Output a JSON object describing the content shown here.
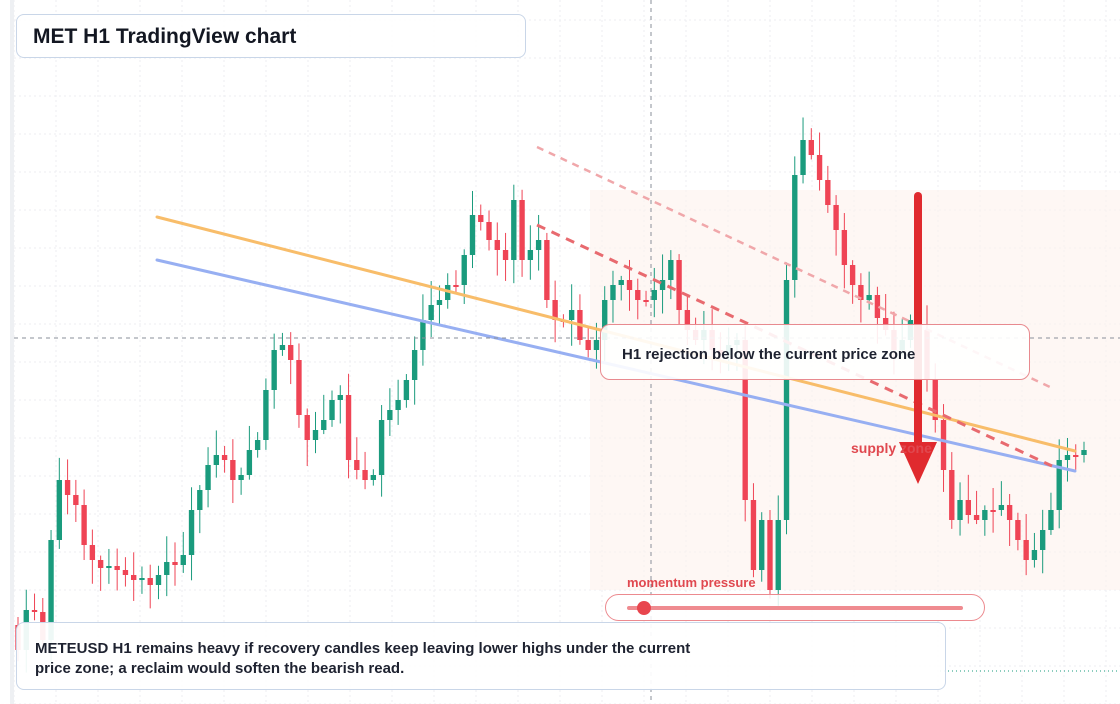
{
  "title": "MET H1 TradingView chart",
  "callout_text": "H1 rejection below the current price zone",
  "note_text": "METEUSD H1 remains heavy if recovery candles keep leaving lower highs under the current price zone; a reclaim would soften the bearish read.",
  "momentum_label": "momentum pressure",
  "momentum_value": 0.05,
  "supply_label": "supply zone",
  "colors": {
    "bull": "#1a9b7d",
    "bear": "#ef4455",
    "orange_line": "#f8bd6a",
    "blue_line": "#97aff2",
    "dashed_line": "#e86a6f",
    "arrow": "#e02a2e"
  },
  "chart_data": {
    "type": "candlestick",
    "title": "MET H1 TradingView chart",
    "grid": true,
    "candle_count": 130,
    "closes": [
      650,
      610,
      612,
      640,
      540,
      480,
      495,
      505,
      545,
      560,
      568,
      566,
      570,
      575,
      580,
      578,
      585,
      575,
      562,
      565,
      555,
      510,
      490,
      465,
      455,
      460,
      480,
      475,
      450,
      440,
      390,
      350,
      345,
      360,
      415,
      440,
      430,
      420,
      400,
      395,
      460,
      470,
      480,
      475,
      420,
      410,
      400,
      380,
      350,
      320,
      305,
      300,
      285,
      285,
      255,
      215,
      222,
      240,
      250,
      260,
      200,
      260,
      250,
      240,
      300,
      320,
      320,
      310,
      340,
      350,
      340,
      300,
      285,
      280,
      290,
      300,
      300,
      290,
      280,
      260,
      310,
      330,
      340,
      330,
      350,
      355,
      345,
      340,
      500,
      570,
      520,
      590,
      520,
      280,
      175,
      140,
      155,
      180,
      205,
      230,
      265,
      285,
      300,
      295,
      318,
      330,
      350,
      340,
      320,
      330,
      380,
      420,
      470,
      520,
      500,
      515,
      520,
      510,
      510,
      505,
      520,
      540,
      560,
      550,
      530,
      510,
      460,
      455,
      455,
      450
    ],
    "y_unit": "chart pixel scale (no price axis shown)",
    "overlays": [
      "orange trendline",
      "blue trendline",
      "upper dashed resistance",
      "lower dashed resistance",
      "shaded supply zone"
    ],
    "annotations": [
      "H1 rejection below the current price zone",
      "supply zone",
      "momentum pressure"
    ]
  }
}
